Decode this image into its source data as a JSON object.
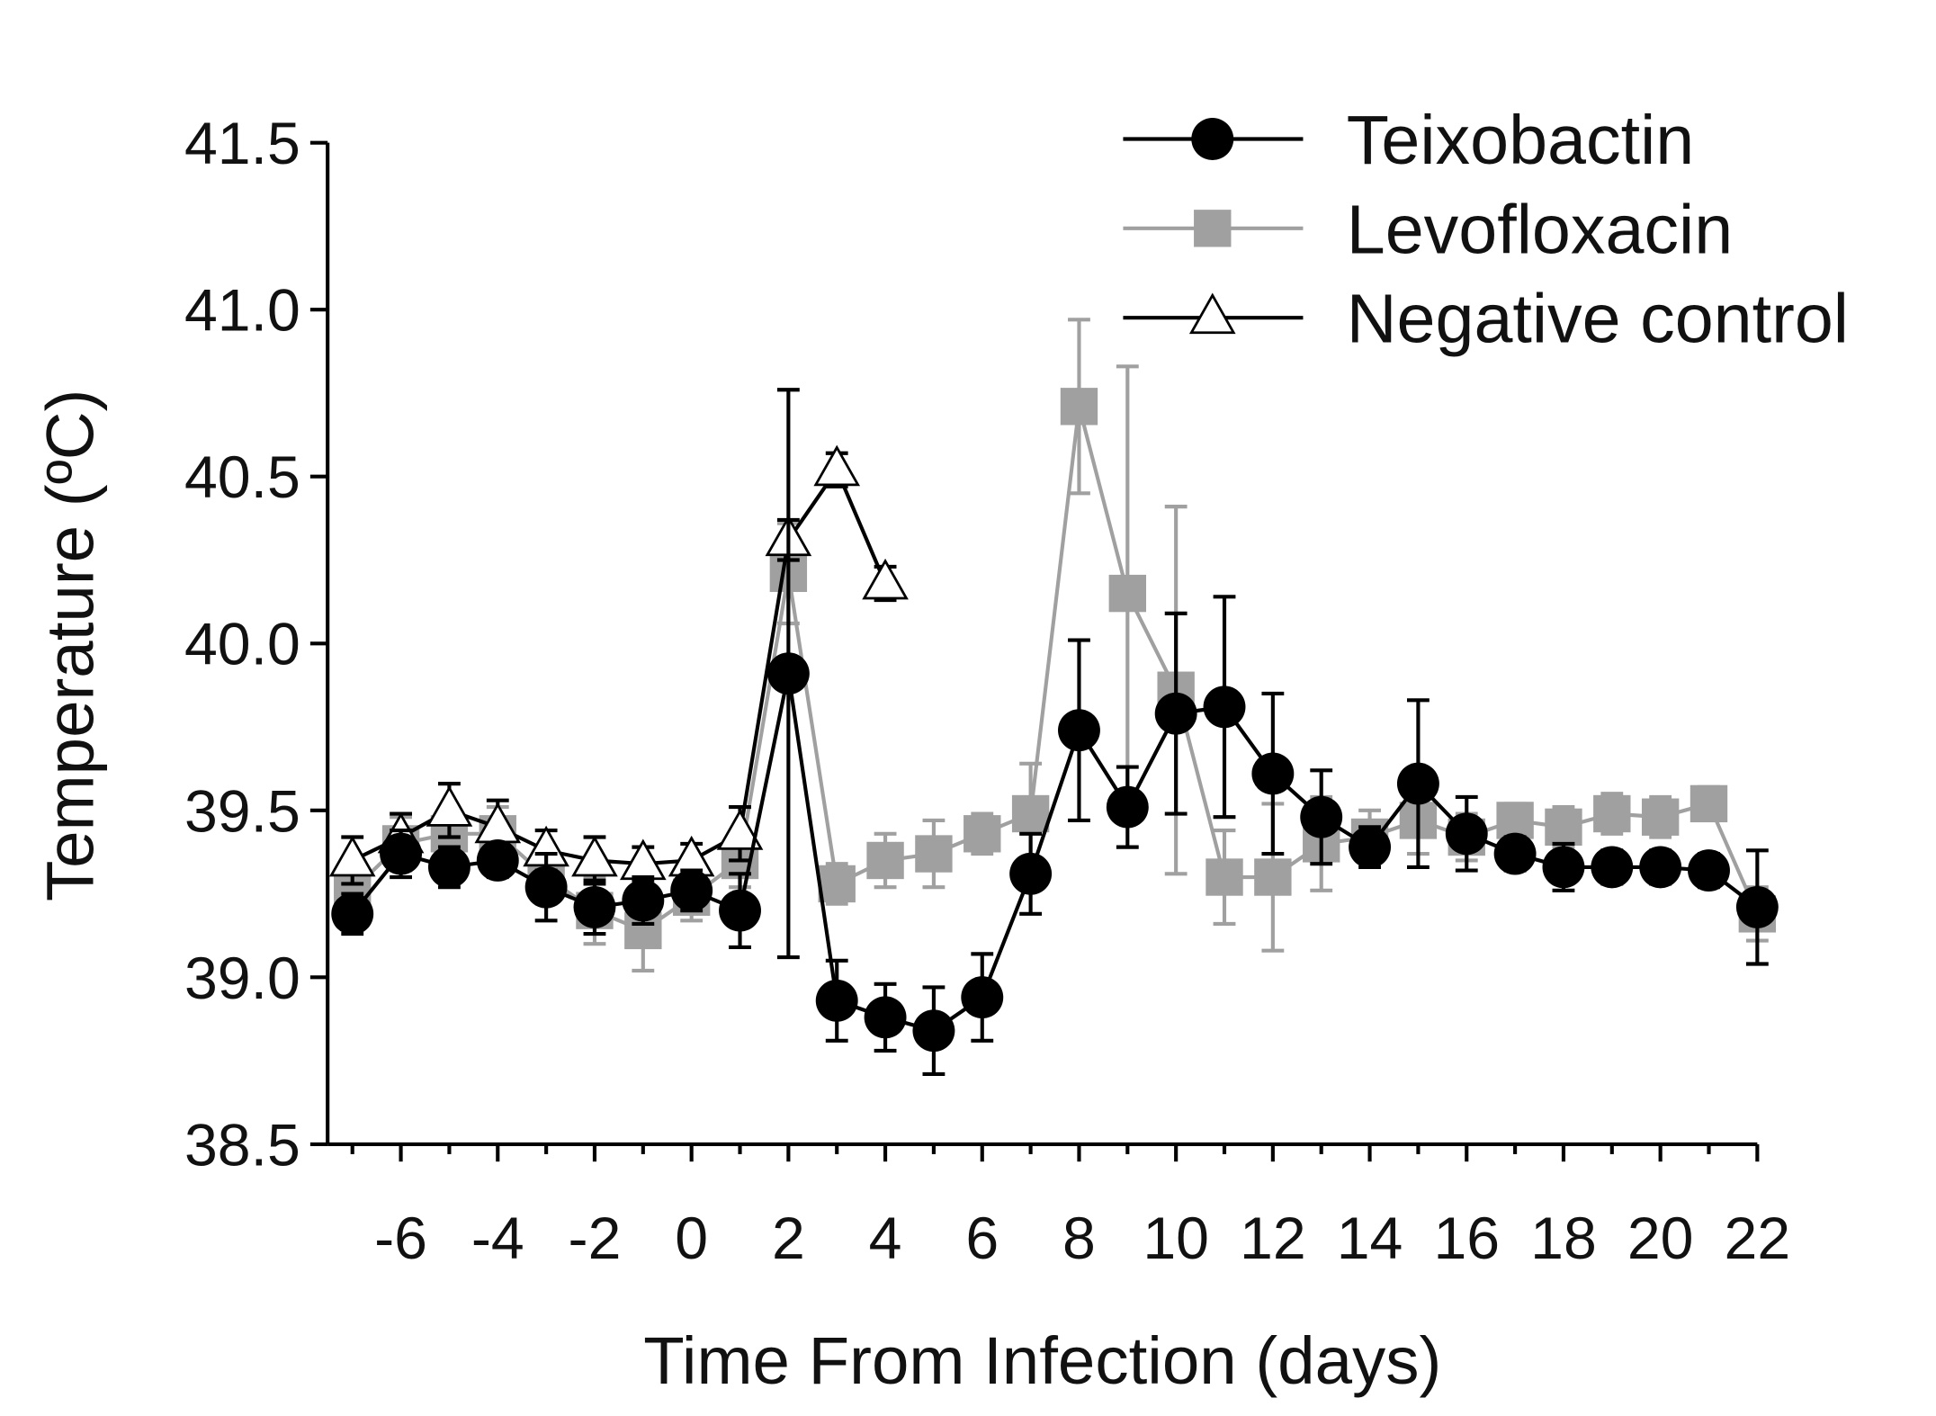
{
  "chart_data": {
    "type": "line",
    "title": "",
    "xlabel": "Time From Infection (days)",
    "ylabel": "Temperature (ºC)",
    "xlim": [
      -7.5,
      22
    ],
    "ylim": [
      38.5,
      41.5
    ],
    "xticks": [
      -6,
      -4,
      -2,
      0,
      2,
      4,
      6,
      8,
      10,
      12,
      14,
      16,
      18,
      20,
      22
    ],
    "xtick_labels": [
      "-6",
      "-4",
      "-2",
      "0",
      "2",
      "4",
      "6",
      "8",
      "10",
      "12",
      "14",
      "16",
      "18",
      "20",
      "22"
    ],
    "yticks": [
      38.5,
      39.0,
      39.5,
      40.0,
      40.5,
      41.0,
      41.5
    ],
    "ytick_labels": [
      "38.5",
      "39.0",
      "39.5",
      "40.0",
      "40.5",
      "41.0",
      "41.5"
    ],
    "grid": false,
    "legend_position": "top-right",
    "series": [
      {
        "name": "Levofloxacin",
        "marker": "square",
        "color": "#a0a0a0",
        "x": [
          -7,
          -6,
          -5,
          -4,
          -3,
          -2,
          -1,
          0,
          1,
          2,
          3,
          4,
          5,
          6,
          7,
          8,
          9,
          10,
          11,
          12,
          13,
          14,
          15,
          16,
          17,
          18,
          19,
          20,
          21,
          22
        ],
        "y": [
          39.26,
          39.4,
          39.43,
          39.43,
          39.3,
          39.2,
          39.14,
          39.24,
          39.35,
          40.21,
          39.28,
          39.35,
          39.37,
          39.43,
          39.49,
          40.71,
          40.15,
          39.86,
          39.3,
          39.3,
          39.4,
          39.42,
          39.47,
          39.42,
          39.47,
          39.45,
          39.49,
          39.48,
          39.52,
          39.19
        ],
        "err": [
          0.06,
          0.08,
          0.08,
          0.08,
          0.08,
          0.1,
          0.12,
          0.07,
          0.08,
          0.15,
          0.06,
          0.08,
          0.1,
          0.06,
          0.15,
          0.26,
          0.68,
          0.55,
          0.14,
          0.22,
          0.14,
          0.08,
          0.1,
          0.07,
          0.05,
          0.06,
          0.06,
          0.06,
          0.05,
          0.08
        ]
      },
      {
        "name": "Negative control",
        "marker": "triangle",
        "color": "#000000",
        "x": [
          -7,
          -6,
          -5,
          -4,
          -3,
          -2,
          -1,
          0,
          1,
          2,
          3,
          4
        ],
        "y": [
          39.35,
          39.42,
          39.5,
          39.45,
          39.38,
          39.35,
          39.34,
          39.35,
          39.43,
          40.31,
          40.52,
          40.18
        ],
        "err": [
          0.07,
          0.07,
          0.08,
          0.08,
          0.06,
          0.07,
          0.05,
          0.05,
          0.08,
          0.06,
          0.05,
          0.05
        ]
      },
      {
        "name": "Teixobactin",
        "marker": "circle",
        "color": "#000000",
        "x": [
          -7,
          -6,
          -5,
          -4,
          -3,
          -2,
          -1,
          0,
          1,
          2,
          3,
          4,
          5,
          6,
          7,
          8,
          9,
          10,
          11,
          12,
          13,
          14,
          15,
          16,
          17,
          18,
          19,
          20,
          21,
          22
        ],
        "y": [
          39.19,
          39.37,
          39.33,
          39.35,
          39.27,
          39.21,
          39.23,
          39.26,
          39.2,
          39.91,
          38.93,
          38.88,
          38.84,
          38.94,
          39.31,
          39.74,
          39.51,
          39.79,
          39.81,
          39.61,
          39.48,
          39.39,
          39.58,
          39.43,
          39.37,
          39.33,
          39.33,
          39.33,
          39.32,
          39.21
        ],
        "err": [
          0.06,
          0.07,
          0.06,
          0.05,
          0.1,
          0.08,
          0.07,
          0.06,
          0.11,
          0.85,
          0.12,
          0.1,
          0.13,
          0.13,
          0.12,
          0.27,
          0.12,
          0.3,
          0.33,
          0.24,
          0.14,
          0.06,
          0.25,
          0.11,
          0.05,
          0.07,
          0.05,
          0.05,
          0.05,
          0.17
        ]
      }
    ]
  }
}
